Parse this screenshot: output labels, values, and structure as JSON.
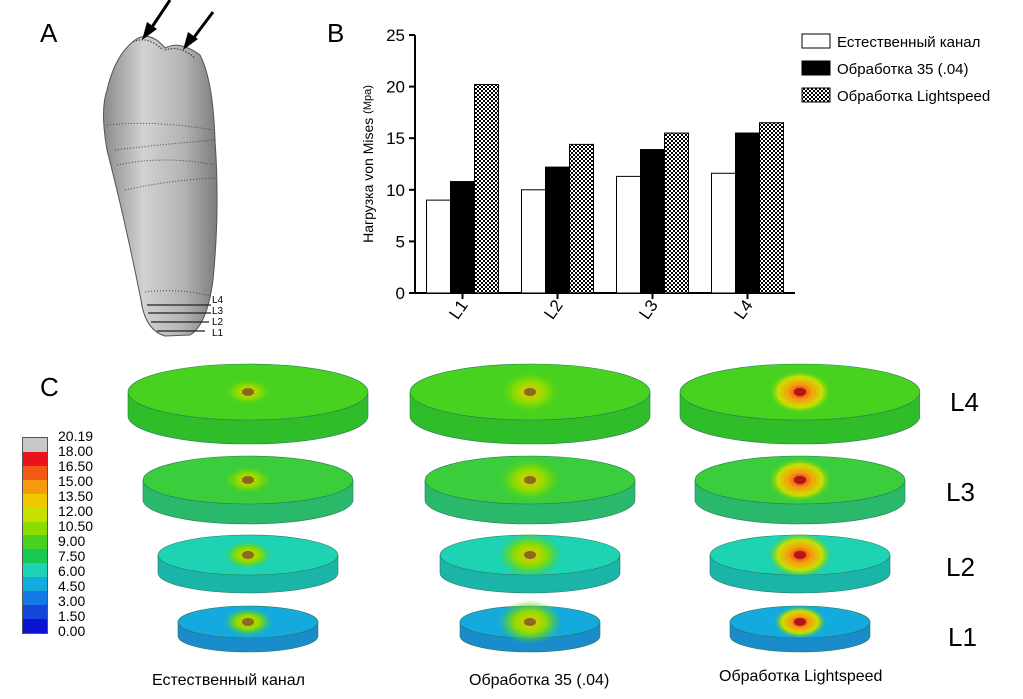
{
  "panels": {
    "a": "A",
    "b": "B",
    "c": "C"
  },
  "tooth_levels": [
    "L4",
    "L3",
    "L2",
    "L1"
  ],
  "chart_data": {
    "type": "bar",
    "ylabel": "Нагрузка von Mises",
    "ylabel_unit": "(Mpa)",
    "categories": [
      "L1",
      "L2",
      "L3",
      "L4"
    ],
    "yticks": [
      "0",
      "5",
      "10",
      "15",
      "20",
      "25"
    ],
    "ylim": [
      0,
      25
    ],
    "series": [
      {
        "name": "Естественный канал",
        "values": [
          9.0,
          10.0,
          11.3,
          11.6
        ],
        "fill": "#ffffff"
      },
      {
        "name": "Обработка 35 (.04)",
        "values": [
          10.8,
          12.2,
          13.9,
          15.5
        ],
        "fill": "#000000"
      },
      {
        "name": "Обработка Lightspeed",
        "values": [
          20.2,
          14.4,
          15.5,
          16.5
        ],
        "fill": "checker"
      }
    ],
    "legend_position": "top-right"
  },
  "colorbar": {
    "labels": [
      "20.19",
      "18.00",
      "16.50",
      "15.00",
      "13.50",
      "12.00",
      "10.50",
      "9.00",
      "7.50",
      "6.00",
      "4.50",
      "3.00",
      "1.50",
      "0.00"
    ],
    "colors": [
      "#c8c8c8",
      "#e8141a",
      "#f25a14",
      "#f89a10",
      "#f0c800",
      "#c8e000",
      "#8cdc00",
      "#46d21e",
      "#18c850",
      "#1ed2b4",
      "#14aade",
      "#1478e6",
      "#1446dc",
      "#0a14d2"
    ]
  },
  "columns": [
    "Естественный канал",
    "Обработка 35 (.04)",
    "Обработка Lightspeed"
  ],
  "levels": [
    "L4",
    "L3",
    "L2",
    "L1"
  ]
}
